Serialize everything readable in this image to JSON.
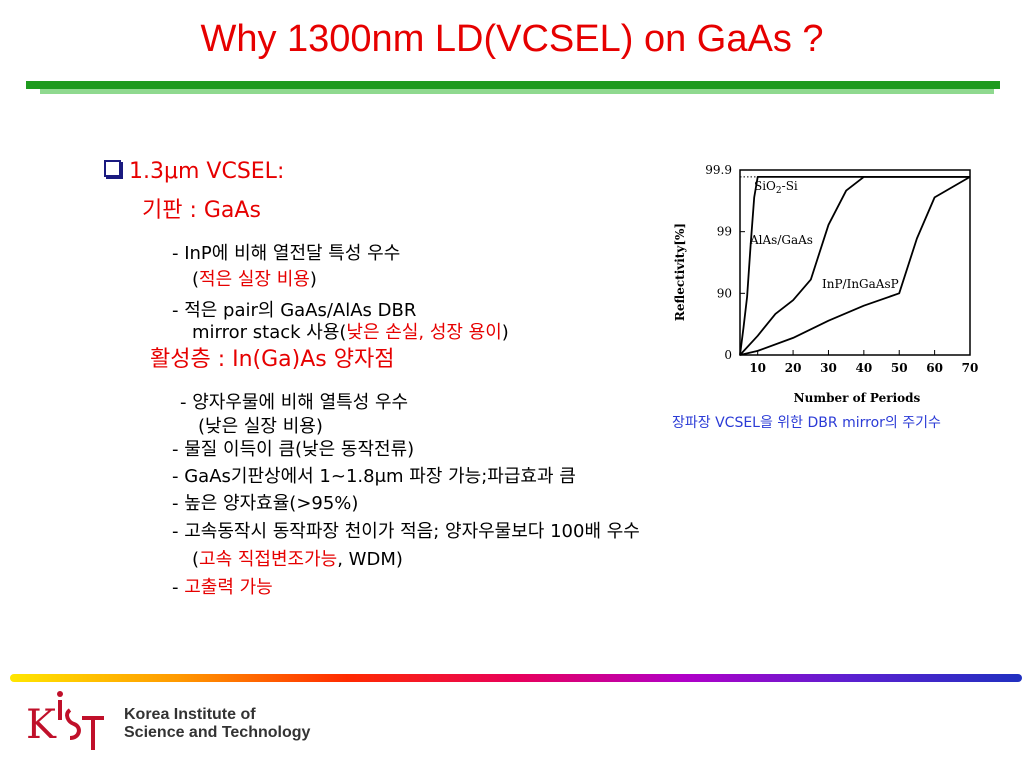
{
  "title": "Why 1300nm LD(VCSEL) on GaAs ?",
  "section1": {
    "heading": "1.3μm VCSEL:",
    "substrate_label": "기판 : GaAs",
    "inp_line": "- InP에 비해 열전달 특성 우수",
    "inp_paren_open": "(",
    "inp_paren_red": "적은 실장 비용",
    "inp_paren_close": ")",
    "pair_line": "- 적은 pair의 GaAs/AlAs DBR",
    "mirror_prefix": "mirror stack 사용(",
    "mirror_red": "낮은 손실, 성장 용이",
    "mirror_close": ")"
  },
  "section2": {
    "heading": "활성층 : In(Ga)As 양자점",
    "lines": [
      "- 양자우물에 비해 열특성 우수",
      "(낮은 실장 비용)",
      "- 물질 이득이 큼(낮은 동작전류)",
      "- GaAs기판상에서 1~1.8μm 파장 가능;파급효과 큼",
      "- 높은 양자효율(>95%)",
      "- 고속동작시 동작파장 천이가 적음; 양자우물보다 100배 우수"
    ],
    "wdm_open": "(",
    "wdm_red": "고속 직접변조가능",
    "wdm_rest": ", WDM)",
    "last_dash": "- ",
    "last_red": "고출력 가능"
  },
  "caption": "장파장 VCSEL을 위한 DBR mirror의 주기수",
  "chart_data": {
    "type": "line",
    "xlabel": "Number of Periods",
    "ylabel": "Reflectivity[%]",
    "x_ticks": [
      "10",
      "20",
      "30",
      "40",
      "50",
      "60",
      "70"
    ],
    "y_ticks": [
      "0",
      "90",
      "99",
      "99.9"
    ],
    "xlim": [
      5,
      70
    ],
    "series": [
      {
        "name": "SiO2-Si",
        "color": "#000000",
        "points": [
          [
            5,
            0
          ],
          [
            6,
            40
          ],
          [
            7,
            85
          ],
          [
            8,
            97
          ],
          [
            9,
            99.5
          ],
          [
            10,
            99.8
          ],
          [
            70,
            99.8
          ]
        ]
      },
      {
        "name": "AlAs/GaAs",
        "color": "#000000",
        "points": [
          [
            5,
            0
          ],
          [
            10,
            28
          ],
          [
            15,
            60
          ],
          [
            20,
            80
          ],
          [
            25,
            92
          ],
          [
            30,
            99.1
          ],
          [
            35,
            99.6
          ],
          [
            40,
            99.8
          ],
          [
            70,
            99.8
          ]
        ]
      },
      {
        "name": "InP/InGaAsP",
        "color": "#000000",
        "points": [
          [
            5,
            0
          ],
          [
            10,
            6
          ],
          [
            20,
            25
          ],
          [
            30,
            50
          ],
          [
            40,
            72
          ],
          [
            50,
            90
          ],
          [
            55,
            98
          ],
          [
            60,
            99.5
          ],
          [
            70,
            99.8
          ]
        ]
      }
    ],
    "reference_line": {
      "y": 99.8,
      "style": "dotted"
    }
  },
  "org": {
    "logo_text": "KIST",
    "line1": "Korea Institute of",
    "line2": "Science and Technology"
  }
}
